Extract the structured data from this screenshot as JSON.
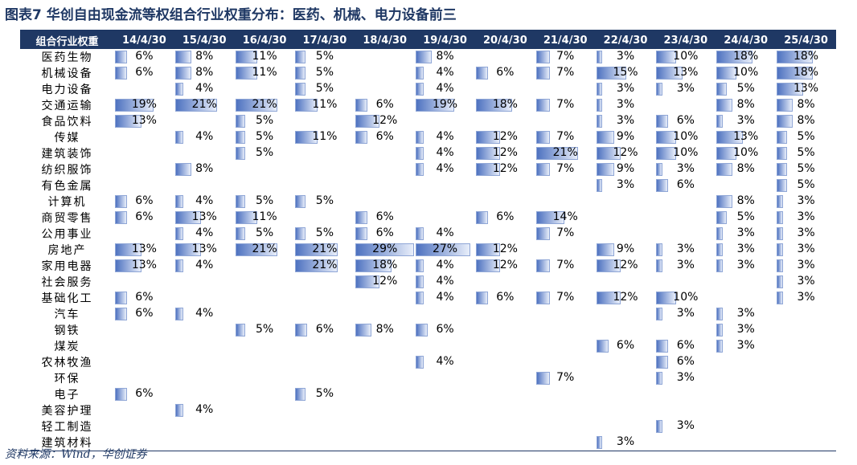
{
  "title": "图表7 华创自由现金流等权组合行业权重分布：医药、机械、电力设备前三",
  "table": {
    "corner": "组合行业权重",
    "columns": [
      "14/4/30",
      "15/4/30",
      "16/4/30",
      "17/4/30",
      "18/4/30",
      "19/4/30",
      "20/4/30",
      "21/4/30",
      "22/4/30",
      "23/4/30",
      "24/4/30",
      "25/4/30"
    ],
    "rows": [
      {
        "name": "医药生物",
        "values": [
          6,
          8,
          11,
          5,
          null,
          8,
          null,
          7,
          3,
          10,
          18,
          18
        ],
        "value_labels": [
          "6%",
          "8%",
          "11%",
          "5%",
          null,
          "8%",
          null,
          "7%",
          "3%",
          "10%",
          "18%",
          "18%"
        ]
      },
      {
        "name": "机械设备",
        "values": [
          6,
          8,
          11,
          5,
          null,
          4,
          6,
          7,
          15,
          13,
          10,
          18
        ],
        "value_labels": [
          "6%",
          "8%",
          "11%",
          "5%",
          null,
          "4%",
          "6%",
          "7%",
          "15%",
          "13%",
          "10%",
          "18%"
        ]
      },
      {
        "name": "电力设备",
        "values": [
          null,
          4,
          null,
          5,
          null,
          4,
          null,
          null,
          3,
          3,
          5,
          13
        ],
        "value_labels": [
          null,
          "4%",
          null,
          "5%",
          null,
          "4%",
          null,
          null,
          "3%",
          "3%",
          "5%",
          "13%"
        ]
      },
      {
        "name": "交通运输",
        "values": [
          19,
          21,
          21,
          11,
          6,
          19,
          18,
          7,
          3,
          null,
          8,
          8
        ],
        "value_labels": [
          "19%",
          "21%",
          "21%",
          "11%",
          "6%",
          "19%",
          "18%",
          "7%",
          "3%",
          null,
          "8%",
          "8%"
        ]
      },
      {
        "name": "食品饮料",
        "values": [
          13,
          null,
          5,
          null,
          12,
          null,
          null,
          null,
          3,
          6,
          3,
          8
        ],
        "value_labels": [
          "13%",
          null,
          "5%",
          null,
          "12%",
          null,
          null,
          null,
          "3%",
          "6%",
          "3%",
          "8%"
        ]
      },
      {
        "name": "传媒",
        "values": [
          null,
          4,
          5,
          11,
          6,
          4,
          12,
          7,
          9,
          10,
          13,
          5
        ],
        "value_labels": [
          null,
          "4%",
          "5%",
          "11%",
          "6%",
          "4%",
          "12%",
          "7%",
          "9%",
          "10%",
          "13%",
          "5%"
        ]
      },
      {
        "name": "建筑装饰",
        "values": [
          null,
          null,
          5,
          null,
          null,
          4,
          12,
          21,
          12,
          10,
          10,
          5
        ],
        "value_labels": [
          null,
          null,
          "5%",
          null,
          null,
          "4%",
          "12%",
          "21%",
          "12%",
          "10%",
          "10%",
          "5%"
        ]
      },
      {
        "name": "纺织服饰",
        "values": [
          null,
          8,
          null,
          null,
          null,
          4,
          12,
          7,
          9,
          3,
          8,
          5
        ],
        "value_labels": [
          null,
          "8%",
          null,
          null,
          null,
          "4%",
          "12%",
          "7%",
          "9%",
          "3%",
          "8%",
          "5%"
        ]
      },
      {
        "name": "有色金属",
        "values": [
          null,
          null,
          null,
          null,
          null,
          null,
          null,
          null,
          3,
          6,
          null,
          5
        ],
        "value_labels": [
          null,
          null,
          null,
          null,
          null,
          null,
          null,
          null,
          "3%",
          "6%",
          null,
          "5%"
        ]
      },
      {
        "name": "计算机",
        "values": [
          6,
          4,
          5,
          5,
          null,
          null,
          null,
          null,
          null,
          null,
          8,
          3
        ],
        "value_labels": [
          "6%",
          "4%",
          "5%",
          "5%",
          null,
          null,
          null,
          null,
          null,
          null,
          "8%",
          "3%"
        ]
      },
      {
        "name": "商贸零售",
        "values": [
          6,
          13,
          11,
          null,
          6,
          null,
          6,
          14,
          null,
          null,
          5,
          3
        ],
        "value_labels": [
          "6%",
          "13%",
          "11%",
          null,
          "6%",
          null,
          "6%",
          "14%",
          null,
          null,
          "5%",
          "3%"
        ]
      },
      {
        "name": "公用事业",
        "values": [
          null,
          4,
          5,
          5,
          6,
          4,
          null,
          7,
          null,
          null,
          3,
          3
        ],
        "value_labels": [
          null,
          "4%",
          "5%",
          "5%",
          "6%",
          "4%",
          null,
          "7%",
          null,
          null,
          "3%",
          "3%"
        ]
      },
      {
        "name": "房地产",
        "values": [
          13,
          13,
          21,
          21,
          29,
          27,
          12,
          null,
          9,
          3,
          3,
          3
        ],
        "value_labels": [
          "13%",
          "13%",
          "21%",
          "21%",
          "29%",
          "27%",
          "12%",
          null,
          "9%",
          "3%",
          "3%",
          "3%"
        ]
      },
      {
        "name": "家用电器",
        "values": [
          13,
          4,
          null,
          21,
          18,
          4,
          12,
          7,
          12,
          3,
          3,
          3
        ],
        "value_labels": [
          "13%",
          "4%",
          null,
          "21%",
          "18%",
          "4%",
          "12%",
          "7%",
          "12%",
          "3%",
          "3%",
          "3%"
        ]
      },
      {
        "name": "社会服务",
        "values": [
          null,
          null,
          null,
          null,
          12,
          4,
          null,
          null,
          null,
          null,
          null,
          3
        ],
        "value_labels": [
          null,
          null,
          null,
          null,
          "12%",
          "4%",
          null,
          null,
          null,
          null,
          null,
          "3%"
        ]
      },
      {
        "name": "基础化工",
        "values": [
          6,
          null,
          null,
          null,
          null,
          4,
          6,
          7,
          12,
          10,
          null,
          3
        ],
        "value_labels": [
          "6%",
          null,
          null,
          null,
          null,
          "4%",
          "6%",
          "7%",
          "12%",
          "10%",
          null,
          "3%"
        ]
      },
      {
        "name": "汽车",
        "values": [
          6,
          4,
          null,
          null,
          null,
          null,
          null,
          null,
          null,
          3,
          3,
          null
        ],
        "value_labels": [
          "6%",
          "4%",
          null,
          null,
          null,
          null,
          null,
          null,
          null,
          "3%",
          "3%",
          null
        ]
      },
      {
        "name": "钢铁",
        "values": [
          null,
          null,
          5,
          6,
          8,
          6,
          null,
          null,
          null,
          null,
          3,
          null
        ],
        "value_labels": [
          null,
          null,
          "5%",
          "6%",
          "8%",
          "6%",
          null,
          null,
          null,
          null,
          "3%",
          null
        ]
      },
      {
        "name": "煤炭",
        "values": [
          null,
          null,
          null,
          null,
          null,
          null,
          null,
          null,
          6,
          6,
          3,
          null
        ],
        "value_labels": [
          null,
          null,
          null,
          null,
          null,
          null,
          null,
          null,
          "6%",
          "6%",
          "3%",
          null
        ]
      },
      {
        "name": "农林牧渔",
        "values": [
          null,
          null,
          null,
          null,
          null,
          4,
          null,
          null,
          null,
          6,
          null,
          null
        ],
        "value_labels": [
          null,
          null,
          null,
          null,
          null,
          "4%",
          null,
          null,
          null,
          "6%",
          null,
          null
        ]
      },
      {
        "name": "环保",
        "values": [
          null,
          null,
          null,
          null,
          null,
          null,
          null,
          7,
          null,
          3,
          null,
          null
        ],
        "value_labels": [
          null,
          null,
          null,
          null,
          null,
          null,
          null,
          "7%",
          null,
          "3%",
          null,
          null
        ]
      },
      {
        "name": "电子",
        "values": [
          6,
          null,
          null,
          5,
          null,
          null,
          null,
          null,
          null,
          null,
          null,
          null
        ],
        "value_labels": [
          "6%",
          null,
          null,
          "5%",
          null,
          null,
          null,
          null,
          null,
          null,
          null,
          null
        ]
      },
      {
        "name": "美容护理",
        "values": [
          null,
          4,
          null,
          null,
          null,
          null,
          null,
          null,
          null,
          null,
          null,
          null
        ],
        "value_labels": [
          null,
          "4%",
          null,
          null,
          null,
          null,
          null,
          null,
          null,
          null,
          null,
          null
        ]
      },
      {
        "name": "轻工制造",
        "values": [
          null,
          null,
          null,
          null,
          null,
          null,
          null,
          null,
          null,
          3,
          null,
          null
        ],
        "value_labels": [
          null,
          null,
          null,
          null,
          null,
          null,
          null,
          null,
          null,
          "3%",
          null,
          null
        ]
      },
      {
        "name": "建筑材料",
        "values": [
          null,
          null,
          null,
          null,
          null,
          null,
          null,
          null,
          3,
          null,
          null,
          null
        ],
        "value_labels": [
          null,
          null,
          null,
          null,
          null,
          null,
          null,
          null,
          "3%",
          null,
          null,
          null
        ]
      }
    ]
  },
  "source": "资料来源：Wind，华创证券"
}
